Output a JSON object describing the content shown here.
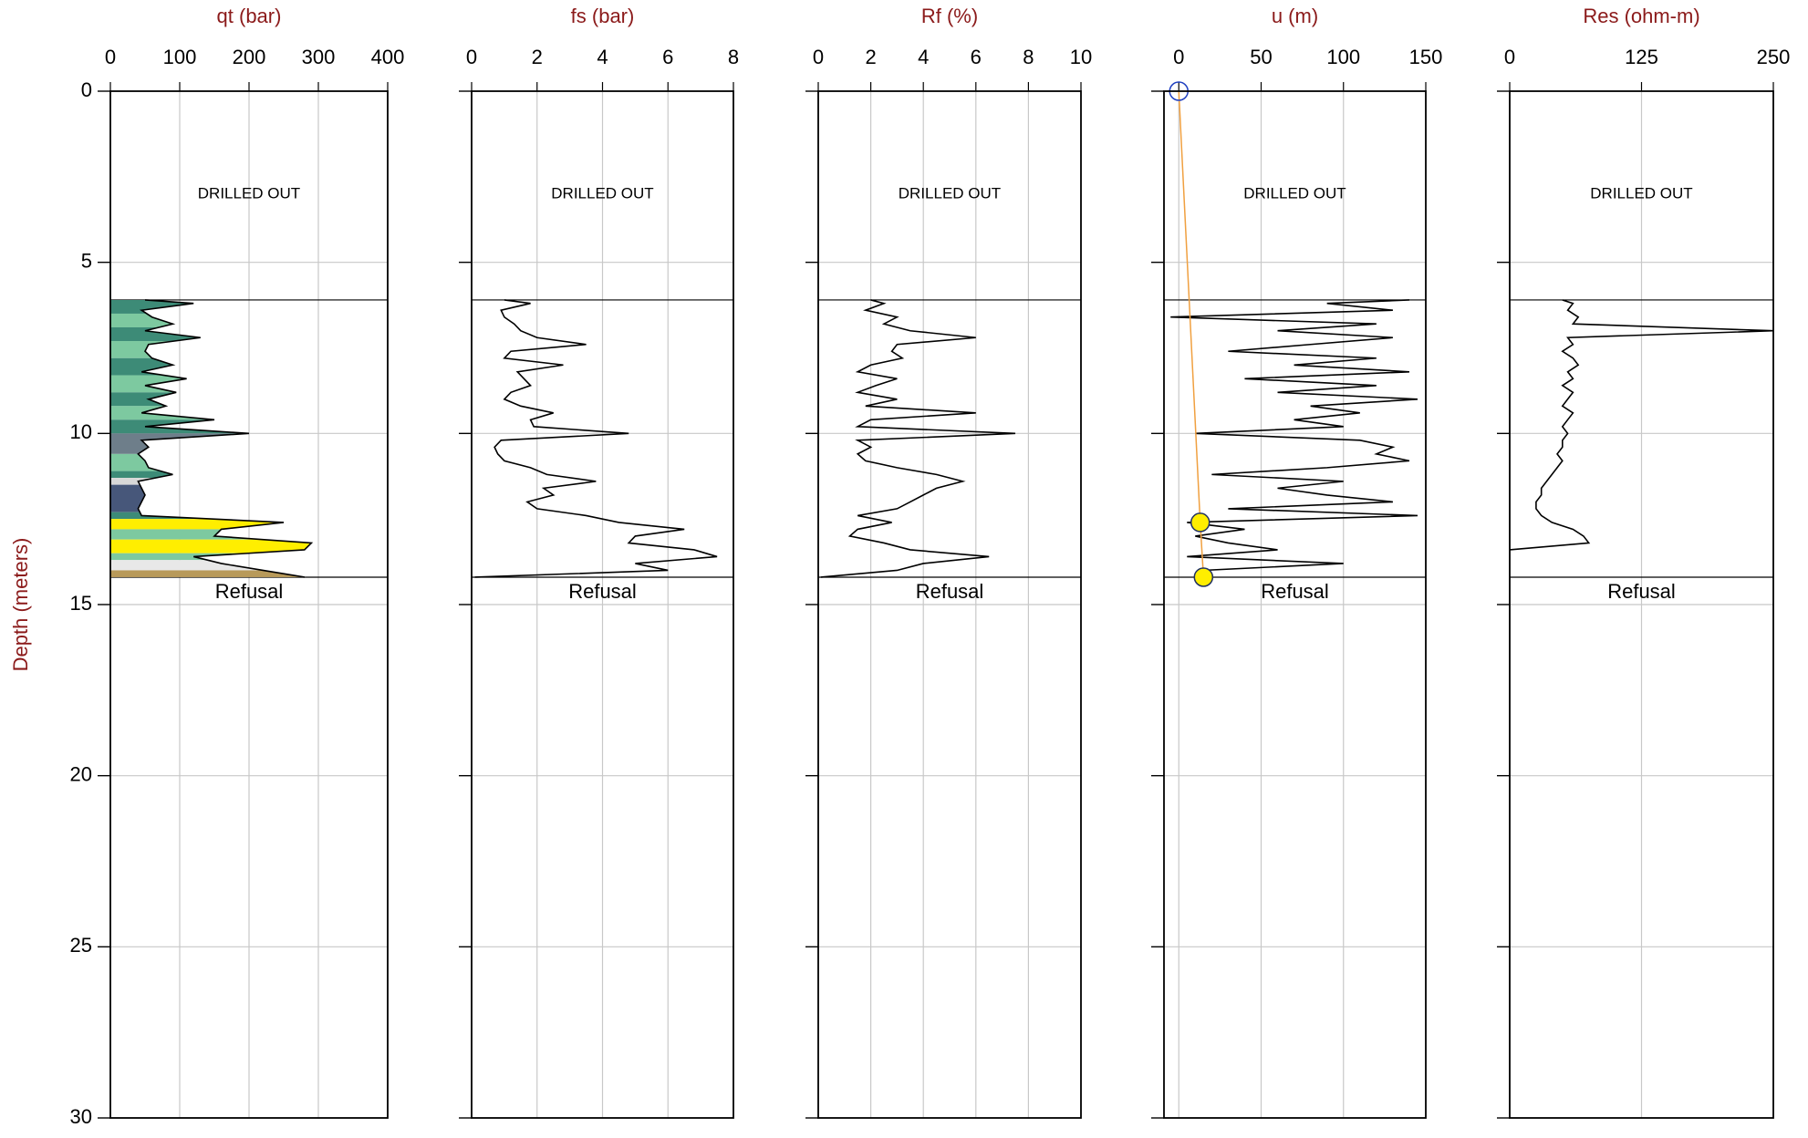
{
  "depth_axis": {
    "label": "Depth (meters)",
    "ylim": [
      0,
      30
    ],
    "yticks": [
      0,
      5,
      10,
      15,
      20,
      25,
      30
    ],
    "grid": true
  },
  "drilled_out_depth": 6.1,
  "refusal_depth": 14.2,
  "depth": [
    6.1,
    6.2,
    6.4,
    6.6,
    6.8,
    7.0,
    7.2,
    7.4,
    7.6,
    7.8,
    8.0,
    8.2,
    8.4,
    8.6,
    8.8,
    9.0,
    9.2,
    9.4,
    9.6,
    9.8,
    10.0,
    10.2,
    10.4,
    10.6,
    10.8,
    11.0,
    11.2,
    11.4,
    11.6,
    11.8,
    12.0,
    12.2,
    12.4,
    12.6,
    12.8,
    13.0,
    13.2,
    13.4,
    13.6,
    13.8,
    14.0,
    14.2
  ],
  "chart_data": [
    {
      "type": "line",
      "title": "qt (bar)",
      "xlim": [
        0,
        400
      ],
      "xticks": [
        0,
        100,
        200,
        300,
        400
      ],
      "color": "#000000",
      "annotations": [
        "DRILLED OUT",
        "Refusal"
      ],
      "values": [
        50,
        120,
        45,
        60,
        90,
        50,
        130,
        55,
        50,
        60,
        90,
        45,
        110,
        50,
        95,
        55,
        80,
        45,
        150,
        50,
        200,
        45,
        55,
        40,
        50,
        55,
        90,
        40,
        45,
        50,
        45,
        40,
        45,
        250,
        160,
        150,
        290,
        280,
        120,
        160,
        220,
        280
      ],
      "sbt_depths": [
        6.1,
        6.5,
        6.9,
        7.3,
        7.8,
        8.3,
        8.8,
        9.2,
        9.6,
        10.0,
        10.6,
        11.1,
        11.3,
        11.5,
        12.3,
        12.5,
        12.8,
        13.1,
        13.5,
        13.7,
        14.0,
        14.2
      ],
      "sbt_colors": [
        "#3d8b77",
        "#7dc9a0",
        "#3d8b77",
        "#7dc9a0",
        "#3d8b77",
        "#7dc9a0",
        "#3d8b77",
        "#7dc9a0",
        "#3d8b77",
        "#6e7e8a",
        "#7dc9a0",
        "#3d8b77",
        "#d8d8d8",
        "#47577a",
        "#3d8b77",
        "#ffee00",
        "#7dc9a0",
        "#ffee00",
        "#7dc9a0",
        "#e8e8e8",
        "#b89a5a"
      ]
    },
    {
      "type": "line",
      "title": "fs (bar)",
      "xlim": [
        0,
        8
      ],
      "xticks": [
        0,
        2,
        4,
        6,
        8
      ],
      "color": "#000000",
      "annotations": [
        "DRILLED OUT",
        "Refusal"
      ],
      "values": [
        1.0,
        1.8,
        0.9,
        1.0,
        1.3,
        1.5,
        2.0,
        3.5,
        1.2,
        1.0,
        2.8,
        1.4,
        1.6,
        1.8,
        1.2,
        1.0,
        1.5,
        2.5,
        1.8,
        1.9,
        4.8,
        0.9,
        0.7,
        0.8,
        1.0,
        1.8,
        2.3,
        3.8,
        2.2,
        2.5,
        1.7,
        2.0,
        3.5,
        4.5,
        6.5,
        5.0,
        4.8,
        6.8,
        7.5,
        5.0,
        6.0,
        0.1
      ]
    },
    {
      "type": "line",
      "title": "Rf (%)",
      "xlim": [
        0,
        10
      ],
      "xticks": [
        0,
        2,
        4,
        6,
        8,
        10
      ],
      "color": "#000000",
      "annotations": [
        "DRILLED OUT",
        "Refusal"
      ],
      "values": [
        2.0,
        2.5,
        1.8,
        3.0,
        2.5,
        3.5,
        6.0,
        3.0,
        2.8,
        3.2,
        2.0,
        1.5,
        3.0,
        2.2,
        1.5,
        3.0,
        1.8,
        6.0,
        2.0,
        1.5,
        7.5,
        1.5,
        2.0,
        1.5,
        1.8,
        3.0,
        4.5,
        5.5,
        4.5,
        4.0,
        3.5,
        3.0,
        1.5,
        2.8,
        1.5,
        1.2,
        2.5,
        3.5,
        6.5,
        4.0,
        3.0,
        0.1
      ]
    },
    {
      "type": "line",
      "title": "u (m)",
      "xlim": [
        -9,
        150
      ],
      "xticks": [
        0,
        50,
        100,
        150
      ],
      "color": "#000000",
      "annotations": [
        "DRILLED OUT",
        "Refusal"
      ],
      "values": [
        140,
        90,
        130,
        -5,
        120,
        60,
        130,
        80,
        30,
        120,
        70,
        140,
        40,
        120,
        60,
        145,
        80,
        110,
        70,
        100,
        10,
        110,
        130,
        120,
        140,
        90,
        20,
        100,
        60,
        90,
        130,
        30,
        145,
        5,
        40,
        10,
        30,
        60,
        5,
        100,
        15,
        15
      ],
      "reference": {
        "color": "#f0a040",
        "values": [
          0,
          13,
          15
        ],
        "depth": [
          0,
          12.6,
          14.2
        ]
      }
    },
    {
      "type": "line",
      "title": "Res (ohm-m)",
      "xlim": [
        0,
        250
      ],
      "xticks": [
        0,
        125,
        250
      ],
      "color": "#000000",
      "annotations": [
        "DRILLED OUT",
        "Refusal"
      ],
      "values": [
        50,
        60,
        55,
        65,
        60,
        250,
        55,
        60,
        50,
        60,
        65,
        55,
        60,
        50,
        60,
        55,
        50,
        60,
        55,
        50,
        55,
        50,
        50,
        45,
        50,
        45,
        40,
        35,
        30,
        30,
        25,
        25,
        30,
        40,
        60,
        70,
        75,
        0,
        null,
        null,
        null,
        null
      ]
    }
  ]
}
